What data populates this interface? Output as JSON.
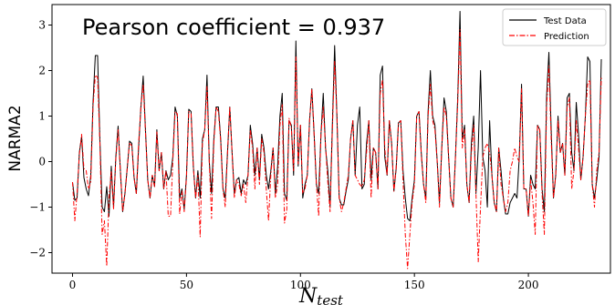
{
  "chart_data": {
    "type": "line",
    "title": "",
    "ylabel": "NARMA2",
    "xlabel_main": "N",
    "xlabel_sub": "test",
    "annotation": "Pearson coefficient = 0.937",
    "xlim": [
      -9,
      236
    ],
    "ylim": [
      -2.45,
      3.45
    ],
    "xticks": [
      0,
      50,
      100,
      150,
      200
    ],
    "xtick_labels": [
      "0",
      "50",
      "100",
      "150",
      "200"
    ],
    "yticks": [
      -2,
      -1,
      0,
      1,
      2,
      3
    ],
    "ytick_labels": [
      "−2",
      "−1",
      "0",
      "1",
      "2",
      "3"
    ],
    "grid": false,
    "legend_position": "top-right",
    "series": [
      {
        "name": "Test Data",
        "color": "#000000",
        "style": "solid",
        "values": [
          -0.45,
          -0.85,
          -0.8,
          0.2,
          0.55,
          -0.35,
          -0.6,
          -0.75,
          -0.3,
          1.3,
          2.33,
          2.33,
          0.5,
          -1.0,
          -1.1,
          -0.55,
          -1.2,
          -0.1,
          -1.0,
          0.1,
          0.78,
          -0.2,
          -1.1,
          -0.7,
          -0.15,
          0.45,
          0.4,
          -0.35,
          -0.7,
          0.3,
          1.2,
          1.88,
          0.7,
          -0.4,
          -0.8,
          -0.3,
          -0.55,
          0.7,
          -0.2,
          0.2,
          -0.6,
          -0.2,
          -0.4,
          -0.3,
          0.1,
          1.2,
          1.0,
          -0.8,
          -0.6,
          -1.05,
          -0.3,
          1.15,
          1.1,
          -0.1,
          -0.8,
          -0.2,
          -0.8,
          0.5,
          0.7,
          1.9,
          0.0,
          -0.7,
          0.5,
          1.2,
          1.2,
          0.5,
          -0.6,
          -0.8,
          0.2,
          1.2,
          0.2,
          -0.7,
          -0.4,
          -0.35,
          -0.7,
          -0.4,
          -0.5,
          -0.3,
          0.8,
          0.4,
          -0.3,
          0.3,
          -0.4,
          0.6,
          0.3,
          -0.3,
          -0.6,
          -0.2,
          0.3,
          -0.7,
          -0.1,
          1.0,
          1.5,
          -0.7,
          -0.85,
          0.9,
          0.8,
          -0.3,
          2.65,
          -0.1,
          0.8,
          -0.8,
          -0.5,
          -0.3,
          0.9,
          1.6,
          0.6,
          -0.5,
          -0.7,
          0.6,
          1.5,
          0.3,
          -0.2,
          -1.0,
          0.8,
          2.55,
          1.0,
          -0.8,
          -0.95,
          -0.95,
          -0.65,
          -0.4,
          0.5,
          0.9,
          -0.3,
          0.8,
          1.2,
          -0.6,
          -0.5,
          0.4,
          0.9,
          -0.4,
          0.3,
          0.2,
          -0.6,
          1.9,
          2.1,
          0.1,
          -0.3,
          0.9,
          0.4,
          -0.65,
          -0.15,
          0.85,
          0.9,
          -0.2,
          -0.8,
          -1.25,
          -1.3,
          -0.8,
          -0.4,
          1.0,
          1.1,
          0.2,
          -0.5,
          -0.8,
          1.1,
          2.0,
          1.0,
          0.8,
          0.0,
          -0.9,
          0.3,
          1.4,
          1.1,
          0.1,
          -0.8,
          -1.0,
          0.1,
          1.4,
          3.3,
          0.5,
          0.8,
          -0.5,
          -0.9,
          0.4,
          1.0,
          -0.7,
          0.3,
          2.0,
          0.1,
          -0.2,
          -1.0,
          0.9,
          -0.3,
          -0.9,
          -1.1,
          0.3,
          -0.2,
          -0.8,
          -1.15,
          -1.15,
          -0.9,
          -0.8,
          -0.7,
          -0.8,
          0.1,
          1.7,
          -0.6,
          -0.6,
          -1.2,
          -0.3,
          -0.5,
          -0.6,
          0.8,
          0.7,
          -0.6,
          -1.1,
          1.45,
          2.4,
          0.7,
          -0.8,
          -0.3,
          1.0,
          0.2,
          0.4,
          -0.3,
          1.4,
          1.5,
          0.2,
          -0.2,
          1.3,
          0.6,
          -0.4,
          0.1,
          1.0,
          2.3,
          2.2,
          -0.5,
          -0.8,
          -0.4,
          0.1,
          2.25
        ]
      },
      {
        "name": "Prediction",
        "color": "#ff0000",
        "style": "dashdot",
        "values": [
          -0.45,
          -1.3,
          -0.7,
          0.15,
          0.6,
          -0.15,
          -0.2,
          -0.6,
          -0.45,
          1.2,
          1.9,
          1.85,
          0.4,
          -1.6,
          -1.3,
          -2.3,
          -0.8,
          -0.2,
          -1.05,
          0.05,
          0.7,
          -0.2,
          -1.1,
          -0.7,
          -0.15,
          0.4,
          0.35,
          -0.35,
          -0.7,
          0.4,
          1.2,
          1.7,
          0.65,
          -0.4,
          -0.8,
          -0.3,
          -0.55,
          0.65,
          -0.2,
          0.2,
          -0.6,
          -0.2,
          -1.2,
          -1.2,
          0.0,
          1.1,
          1.05,
          -1.15,
          -0.65,
          -1.1,
          -0.35,
          1.1,
          1.05,
          -0.1,
          -0.8,
          -0.3,
          -1.65,
          0.4,
          0.7,
          1.65,
          0.0,
          -1.25,
          0.4,
          1.2,
          1.1,
          0.45,
          -0.6,
          -1.0,
          0.2,
          1.2,
          0.2,
          -0.8,
          -0.4,
          -0.5,
          -0.75,
          -0.5,
          -0.9,
          -0.3,
          0.7,
          0.3,
          -0.6,
          0.3,
          -0.5,
          0.5,
          0.2,
          -0.6,
          -1.3,
          -0.3,
          0.3,
          -0.8,
          -0.5,
          0.8,
          1.25,
          -1.35,
          -1.05,
          0.95,
          0.75,
          -0.2,
          2.3,
          -0.05,
          0.8,
          -0.7,
          -0.6,
          -0.3,
          0.9,
          1.6,
          0.6,
          -0.5,
          -1.2,
          0.6,
          1.2,
          0.35,
          -0.45,
          -1.1,
          0.7,
          2.2,
          1.0,
          -0.8,
          -1.1,
          -0.9,
          -0.6,
          -0.3,
          0.5,
          0.9,
          -0.3,
          -0.4,
          -0.5,
          -0.55,
          -0.4,
          0.2,
          0.9,
          -0.8,
          0.3,
          0.2,
          -0.6,
          1.5,
          1.8,
          0.3,
          -0.3,
          0.9,
          0.4,
          -0.65,
          -0.15,
          0.85,
          0.9,
          -0.4,
          -1.6,
          -2.35,
          -1.6,
          -0.9,
          -0.5,
          1.0,
          1.1,
          0.15,
          -0.5,
          -0.9,
          1.0,
          1.7,
          0.9,
          0.7,
          0.0,
          -1.0,
          0.3,
          1.2,
          1.0,
          0.1,
          -0.8,
          -1.0,
          0.1,
          1.3,
          2.9,
          0.3,
          0.7,
          -0.5,
          -0.9,
          0.2,
          0.8,
          -0.7,
          -2.2,
          -1.0,
          0.1,
          0.3,
          0.4,
          0.2,
          -0.3,
          -0.9,
          -1.1,
          0.3,
          -0.5,
          -0.8,
          -1.1,
          -0.9,
          -0.2,
          0.0,
          0.3,
          0.1,
          0.0,
          1.6,
          -0.6,
          -0.6,
          -1.2,
          -0.4,
          -0.9,
          -1.6,
          0.8,
          0.7,
          -0.7,
          -1.6,
          1.2,
          2.1,
          0.5,
          -0.8,
          -0.3,
          0.9,
          0.2,
          0.4,
          -0.3,
          1.2,
          1.4,
          -0.6,
          -0.2,
          0.9,
          0.3,
          -0.4,
          0.1,
          1.0,
          1.7,
          1.8,
          -0.5,
          -1.0,
          -0.2,
          0.2,
          1.85
        ]
      }
    ]
  }
}
